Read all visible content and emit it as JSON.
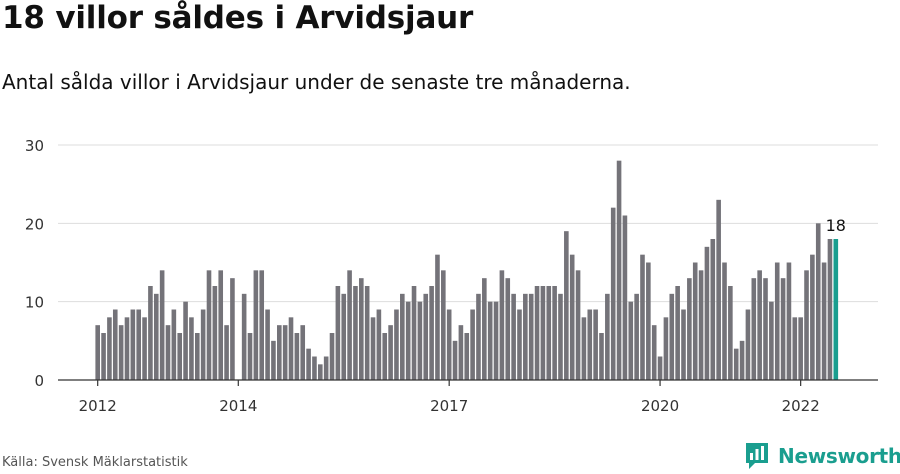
{
  "header": {
    "title": "18 villor såldes i Arvidsjaur",
    "subtitle": "Antal sålda villor i Arvidsjaur under de senaste tre månaderna."
  },
  "footer": {
    "source": "Källa: Svensk Mäklarstatistik",
    "brand": "Newsworthy",
    "brand_icon": "newsworthy-logo-icon"
  },
  "colors": {
    "bar": "#747379",
    "highlight": "#1a9e8f",
    "grid": "#dddddd",
    "axis": "#333333"
  },
  "chart_data": {
    "type": "bar",
    "title": "18 villor såldes i Arvidsjaur",
    "subtitle": "Antal sålda villor i Arvidsjaur under de senaste tre månaderna.",
    "xlabel": "",
    "ylabel": "",
    "ylim": [
      0,
      30
    ],
    "yticks": [
      0,
      10,
      20,
      30
    ],
    "grid": true,
    "legend": "none",
    "x_start": "2012-01",
    "x_end": "2022-09",
    "xtick_labels": [
      "2012",
      "2014",
      "2017",
      "2020",
      "2022"
    ],
    "values": [
      7,
      6,
      8,
      9,
      7,
      8,
      9,
      9,
      8,
      12,
      11,
      14,
      7,
      9,
      6,
      10,
      8,
      6,
      9,
      14,
      12,
      14,
      7,
      13,
      0,
      11,
      6,
      14,
      14,
      9,
      5,
      7,
      7,
      8,
      6,
      7,
      4,
      3,
      2,
      3,
      6,
      12,
      11,
      14,
      12,
      13,
      12,
      8,
      9,
      6,
      7,
      9,
      11,
      10,
      12,
      10,
      11,
      12,
      16,
      14,
      9,
      5,
      7,
      6,
      9,
      11,
      13,
      10,
      10,
      14,
      13,
      11,
      9,
      11,
      11,
      12,
      12,
      12,
      12,
      11,
      19,
      16,
      14,
      8,
      9,
      9,
      6,
      11,
      22,
      28,
      21,
      10,
      11,
      16,
      15,
      7,
      3,
      8,
      11,
      12,
      9,
      13,
      15,
      14,
      17,
      18,
      23,
      15,
      12,
      4,
      5,
      9,
      13,
      14,
      13,
      10,
      15,
      13,
      15,
      8,
      8,
      14,
      16,
      20,
      15,
      18,
      18
    ],
    "highlight_last": true,
    "annotation": "18"
  }
}
